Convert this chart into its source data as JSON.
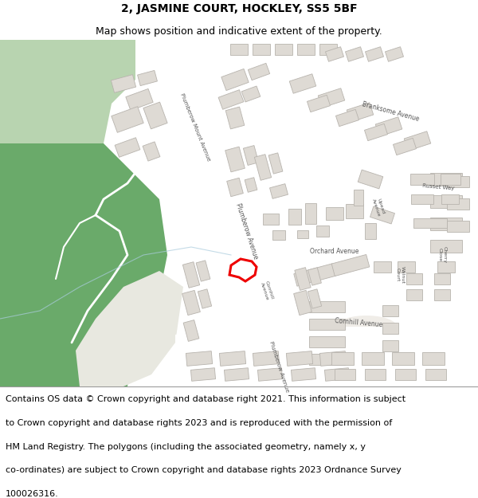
{
  "title": "2, JASMINE COURT, HOCKLEY, SS5 5BF",
  "subtitle": "Map shows position and indicative extent of the property.",
  "copyright_lines": [
    "Contains OS data © Crown copyright and database right 2021. This information is subject",
    "to Crown copyright and database rights 2023 and is reproduced with the permission of",
    "HM Land Registry. The polygons (including the associated geometry, namely x, y",
    "co-ordinates) are subject to Crown copyright and database rights 2023 Ordnance Survey",
    "100026316."
  ],
  "map_bg": "#f0ede8",
  "road_color": "#ffffff",
  "building_fill": "#dedad4",
  "building_edge": "#b8b4ae",
  "green_light": "#b8d4b0",
  "green_dark": "#6aaa6a",
  "green_path": "#ffffff",
  "blue_line": "#aaccdd",
  "highlight_color": "#ee0000",
  "text_color": "#555555",
  "title_fontsize": 10,
  "subtitle_fontsize": 9,
  "map_label_fontsize": 5.5,
  "copyright_fontsize": 8
}
